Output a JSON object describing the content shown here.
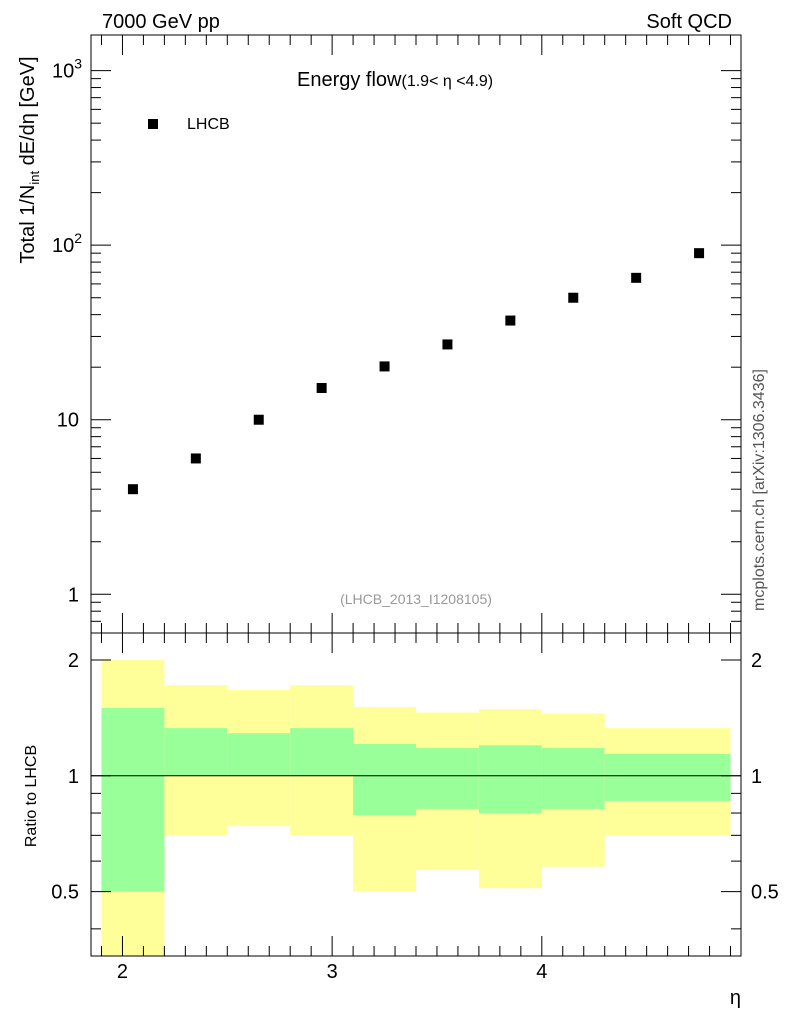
{
  "header": {
    "left": "7000 GeV pp",
    "right": "Soft QCD"
  },
  "side_label": "mcplots.cern.ch [arXiv:1306.3436]",
  "colors": {
    "band_outer": "#ffff99",
    "band_inner": "#99ff99",
    "marker": "#000000"
  },
  "chart_data": [
    {
      "type": "scatter",
      "title": "Energy flow",
      "title_suffix": "(1.9< η <4.9)",
      "ylabel": "Total 1/N",
      "ylabel_sub": "int",
      "ylabel_rest": " dE/dη [GeV]",
      "yscale": "log",
      "ylim": [
        0.6,
        1600
      ],
      "xlim": [
        1.85,
        4.95
      ],
      "y_ticks": [
        {
          "value": 1,
          "label": "1"
        },
        {
          "value": 10,
          "label": "10"
        },
        {
          "value": 100,
          "base": "10",
          "exp": "2"
        },
        {
          "value": 1000,
          "base": "10",
          "exp": "3"
        }
      ],
      "watermark": "(LHCB_2013_I1208105)",
      "legend": "LHCB",
      "series": [
        {
          "name": "LHCB",
          "x": [
            2.05,
            2.35,
            2.65,
            2.95,
            3.25,
            3.55,
            3.85,
            4.15,
            4.45,
            4.75
          ],
          "y": [
            4.0,
            6.0,
            10.0,
            15.2,
            20.2,
            27.0,
            37.0,
            50.0,
            65.0,
            90.0
          ]
        }
      ]
    },
    {
      "type": "area",
      "ylabel": "Ratio to LHCB",
      "xlabel": "η",
      "yscale": "log",
      "ylim": [
        0.34,
        2.35
      ],
      "xlim": [
        1.85,
        4.95
      ],
      "x_ticks": [
        2,
        3,
        4
      ],
      "y_ticks": [
        {
          "value": 0.5,
          "label": "0.5"
        },
        {
          "value": 1,
          "label": "1"
        },
        {
          "value": 2,
          "label": "2"
        }
      ],
      "reference": 1,
      "bins": [
        {
          "lo": 1.9,
          "hi": 2.2,
          "outer": [
            0.3,
            2.0
          ],
          "inner": [
            0.5,
            1.5
          ]
        },
        {
          "lo": 2.2,
          "hi": 2.5,
          "outer": [
            0.7,
            1.72
          ],
          "inner": [
            1.0,
            1.33
          ]
        },
        {
          "lo": 2.5,
          "hi": 2.8,
          "outer": [
            0.74,
            1.67
          ],
          "inner": [
            1.0,
            1.29
          ]
        },
        {
          "lo": 2.8,
          "hi": 3.1,
          "outer": [
            0.7,
            1.72
          ],
          "inner": [
            1.0,
            1.33
          ]
        },
        {
          "lo": 3.1,
          "hi": 3.4,
          "outer": [
            0.5,
            1.51
          ],
          "inner": [
            0.79,
            1.21
          ]
        },
        {
          "lo": 3.4,
          "hi": 3.7,
          "outer": [
            0.57,
            1.46
          ],
          "inner": [
            0.82,
            1.18
          ]
        },
        {
          "lo": 3.7,
          "hi": 4.0,
          "outer": [
            0.51,
            1.49
          ],
          "inner": [
            0.8,
            1.2
          ]
        },
        {
          "lo": 4.0,
          "hi": 4.3,
          "outer": [
            0.58,
            1.45
          ],
          "inner": [
            0.82,
            1.18
          ]
        },
        {
          "lo": 4.3,
          "hi": 4.9,
          "outer": [
            0.7,
            1.33
          ],
          "inner": [
            0.86,
            1.14
          ]
        }
      ]
    }
  ]
}
